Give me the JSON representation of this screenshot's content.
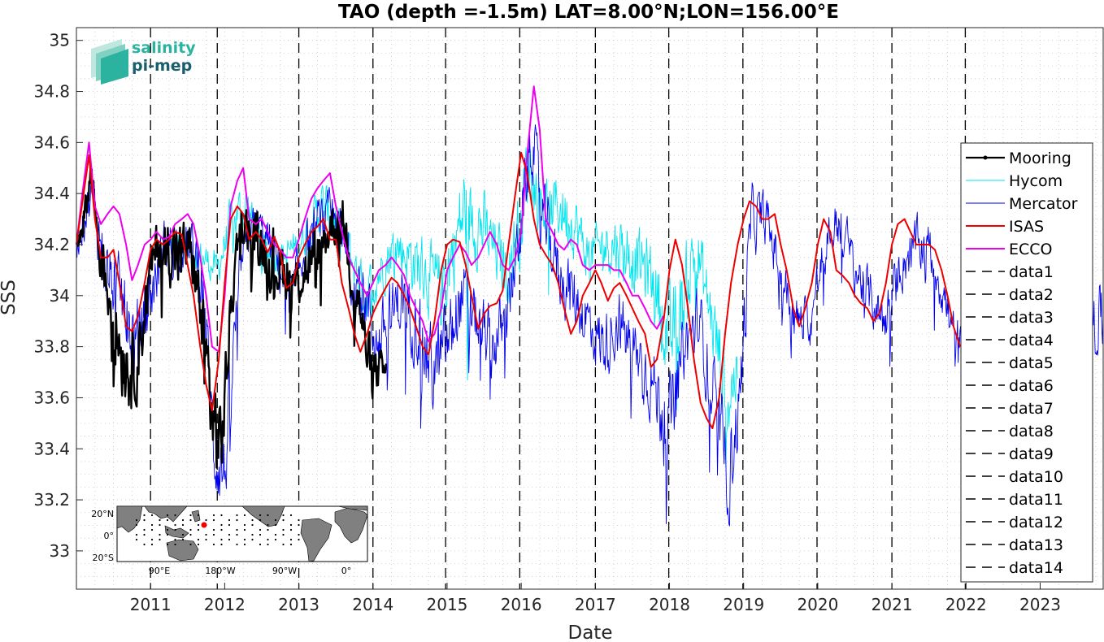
{
  "chart_data": {
    "type": "line",
    "title": "TAO (depth =-1.5m) LAT=8.00°N;LON=156.00°E",
    "xlabel": "Date",
    "ylabel": "SSS",
    "xlim": [
      2010.0,
      2023.85
    ],
    "ylim": [
      32.85,
      35.05
    ],
    "x_ticks": [
      2011,
      2012,
      2013,
      2014,
      2015,
      2016,
      2017,
      2018,
      2019,
      2020,
      2021,
      2022,
      2023
    ],
    "x_tick_labels": [
      "2011",
      "2012",
      "2013",
      "2014",
      "2015",
      "2016",
      "2017",
      "2018",
      "2019",
      "2020",
      "2021",
      "2022",
      "2023"
    ],
    "y_ticks": [
      33,
      33.2,
      33.4,
      33.6,
      33.8,
      34,
      34.2,
      34.4,
      34.6,
      34.8,
      35
    ],
    "y_tick_labels": [
      "33",
      "33.2",
      "33.4",
      "33.6",
      "33.8",
      "34",
      "34.2",
      "34.4",
      "34.6",
      "34.8",
      "35"
    ],
    "grid": true,
    "legend_position": "right",
    "vertical_markers": [
      2011.0,
      2011.9,
      2013.0,
      2014.0,
      2014.98,
      2015.98,
      2017.0,
      2017.99,
      2018.99,
      2019.99,
      2021.0,
      2021.99
    ],
    "series": [
      {
        "name": "Mooring",
        "color": "#000000",
        "style": "noisy",
        "x": [
          2010.0,
          2010.1,
          2010.2,
          2010.3,
          2010.45,
          2010.6,
          2010.75,
          2010.85,
          2011.0,
          2011.1,
          2011.25,
          2011.4,
          2011.5,
          2011.6,
          2011.75,
          2011.85,
          2011.95,
          2012.1,
          2012.2,
          2012.35,
          2012.5,
          2012.65,
          2012.8,
          2012.95,
          2013.1,
          2013.3,
          2013.5,
          2013.6,
          2013.7,
          2013.8,
          2013.9,
          2014.0,
          2014.15
        ],
        "y": [
          34.2,
          34.3,
          34.5,
          34.2,
          34.0,
          33.8,
          33.7,
          33.8,
          34.1,
          34.2,
          34.2,
          34.15,
          34.2,
          34.1,
          33.75,
          33.5,
          33.4,
          34.0,
          34.3,
          34.25,
          34.2,
          34.15,
          34.1,
          34.05,
          34.1,
          34.2,
          34.3,
          34.3,
          34.1,
          34.0,
          33.8,
          33.7,
          33.7
        ],
        "amp": [
          0.05,
          0.1,
          0.1,
          0.15,
          0.2,
          0.25,
          0.25,
          0.2,
          0.15,
          0.15,
          0.2,
          0.2,
          0.15,
          0.15,
          0.25,
          0.3,
          0.25,
          0.15,
          0.1,
          0.15,
          0.15,
          0.2,
          0.15,
          0.15,
          0.15,
          0.15,
          0.15,
          0.15,
          0.15,
          0.15,
          0.15,
          0.15,
          0.1
        ],
        "xend": 2014.18
      },
      {
        "name": "Hycom",
        "color": "#00e5ee",
        "style": "noisy",
        "x": [
          2011.15,
          2011.5,
          2011.9,
          2012.1,
          2012.3,
          2012.5,
          2012.7,
          2013.0,
          2013.3,
          2013.5,
          2013.7,
          2013.9,
          2014.1,
          2014.3,
          2014.5,
          2014.7,
          2014.9,
          2015.1,
          2015.25,
          2015.4,
          2015.6,
          2015.8,
          2016.0,
          2016.1,
          2016.2,
          2016.35,
          2016.5,
          2016.7,
          2016.9,
          2017.1,
          2017.3,
          2017.5,
          2017.7,
          2017.85,
          2018.0,
          2018.2,
          2018.35,
          2018.5,
          2018.65,
          2018.8,
          2018.9
        ],
        "y": [
          34.2,
          34.2,
          34.1,
          34.3,
          34.35,
          34.2,
          34.15,
          34.2,
          34.35,
          34.3,
          34.15,
          34.0,
          34.1,
          34.2,
          34.15,
          34.1,
          34.0,
          34.2,
          34.35,
          34.3,
          34.2,
          34.1,
          34.3,
          34.55,
          34.4,
          34.35,
          34.35,
          34.3,
          34.15,
          34.2,
          34.2,
          34.15,
          34.1,
          34.0,
          33.8,
          34.0,
          34.2,
          34.0,
          33.8,
          33.6,
          33.7
        ],
        "amp": [
          0.1,
          0.1,
          0.1,
          0.15,
          0.15,
          0.1,
          0.1,
          0.1,
          0.15,
          0.15,
          0.15,
          0.15,
          0.15,
          0.15,
          0.2,
          0.2,
          0.25,
          0.25,
          0.3,
          0.25,
          0.2,
          0.2,
          0.25,
          0.25,
          0.2,
          0.2,
          0.2,
          0.2,
          0.15,
          0.15,
          0.2,
          0.2,
          0.2,
          0.25,
          0.3,
          0.25,
          0.25,
          0.2,
          0.25,
          0.25,
          0.2
        ],
        "xend": 2018.92
      },
      {
        "name": "Mercator",
        "color": "#0000ee",
        "style": "noisy",
        "x": [
          2010.0,
          2010.2,
          2010.4,
          2010.6,
          2010.8,
          2011.0,
          2011.2,
          2011.5,
          2011.7,
          2011.85,
          2012.0,
          2012.2,
          2012.4,
          2012.6,
          2012.9,
          2013.1,
          2013.3,
          2013.5,
          2013.7,
          2013.9,
          2014.05,
          2014.2,
          2014.4,
          2014.6,
          2014.8,
          2015.0,
          2015.2,
          2015.4,
          2015.6,
          2015.8,
          2016.0,
          2016.15,
          2016.3,
          2016.5,
          2016.7,
          2016.9,
          2017.1,
          2017.3,
          2017.5,
          2017.7,
          2017.85,
          2018.0,
          2018.2,
          2018.4,
          2018.6,
          2018.8,
          2018.95,
          2019.1,
          2019.3,
          2019.5,
          2019.7,
          2019.9,
          2020.1,
          2020.3,
          2020.5,
          2020.7,
          2020.9,
          2021.1,
          2021.3,
          2021.5,
          2021.7,
          2021.85,
          2022.0,
          2022.2,
          2022.4,
          2022.6,
          2022.8,
          2023.0,
          2023.2,
          2023.4,
          2023.6,
          2023.85
        ],
        "y": [
          34.2,
          34.4,
          34.1,
          34.0,
          33.8,
          34.0,
          34.2,
          34.2,
          34.1,
          33.4,
          33.3,
          34.1,
          34.3,
          34.2,
          34.0,
          34.2,
          34.3,
          34.3,
          34.1,
          34.0,
          33.8,
          33.9,
          34.0,
          33.9,
          33.7,
          33.8,
          34.0,
          33.9,
          33.8,
          33.9,
          34.3,
          34.6,
          34.3,
          34.1,
          34.0,
          33.9,
          33.8,
          33.9,
          33.8,
          33.7,
          33.6,
          33.5,
          33.8,
          33.9,
          33.6,
          33.3,
          33.6,
          34.3,
          34.3,
          34.1,
          33.9,
          33.9,
          34.2,
          34.3,
          34.1,
          34.0,
          33.9,
          34.1,
          34.2,
          34.2,
          34.0,
          33.8,
          33.7,
          33.9,
          34.0,
          34.1,
          34.2,
          34.1,
          34.3,
          34.0,
          33.9,
          33.9
        ],
        "amp": [
          0.1,
          0.15,
          0.2,
          0.2,
          0.25,
          0.2,
          0.15,
          0.15,
          0.2,
          0.25,
          0.25,
          0.15,
          0.1,
          0.15,
          0.15,
          0.15,
          0.15,
          0.15,
          0.2,
          0.2,
          0.2,
          0.2,
          0.2,
          0.25,
          0.25,
          0.25,
          0.2,
          0.2,
          0.2,
          0.2,
          0.2,
          0.2,
          0.2,
          0.2,
          0.2,
          0.2,
          0.2,
          0.2,
          0.2,
          0.2,
          0.25,
          0.25,
          0.2,
          0.2,
          0.25,
          0.25,
          0.25,
          0.2,
          0.15,
          0.15,
          0.15,
          0.15,
          0.15,
          0.15,
          0.15,
          0.15,
          0.15,
          0.15,
          0.15,
          0.15,
          0.15,
          0.2,
          0.2,
          0.2,
          0.2,
          0.2,
          0.25,
          0.25,
          0.3,
          0.2,
          0.2,
          0.2
        ],
        "xend": 2023.85
      },
      {
        "name": "ISAS",
        "color": "#ee0000",
        "style": "smooth",
        "x": [
          2010.0,
          2010.17,
          2010.25,
          2010.33,
          2010.42,
          2010.5,
          2010.58,
          2010.67,
          2010.75,
          2010.83,
          2010.92,
          2011.0,
          2011.08,
          2011.17,
          2011.25,
          2011.33,
          2011.42,
          2011.5,
          2011.58,
          2011.67,
          2011.75,
          2011.83,
          2011.92,
          2012.0,
          2012.08,
          2012.17,
          2012.25,
          2012.33,
          2012.42,
          2012.5,
          2012.58,
          2012.67,
          2012.75,
          2012.83,
          2012.92,
          2013.0,
          2013.08,
          2013.17,
          2013.25,
          2013.33,
          2013.42,
          2013.5,
          2013.58,
          2013.67,
          2013.75,
          2013.83,
          2013.92,
          2014.0,
          2014.08,
          2014.17,
          2014.25,
          2014.33,
          2014.42,
          2014.5,
          2014.58,
          2014.67,
          2014.75,
          2014.83,
          2014.92,
          2015.0,
          2015.08,
          2015.17,
          2015.25,
          2015.33,
          2015.42,
          2015.5,
          2015.58,
          2015.67,
          2015.75,
          2015.83,
          2015.92,
          2016.0,
          2016.08,
          2016.17,
          2016.25,
          2016.33,
          2016.42,
          2016.5,
          2016.58,
          2016.67,
          2016.75,
          2016.83,
          2016.92,
          2017.0,
          2017.08,
          2017.17,
          2017.25,
          2017.33,
          2017.42,
          2017.5,
          2017.58,
          2017.67,
          2017.75,
          2017.83,
          2017.92,
          2018.0,
          2018.08,
          2018.17,
          2018.25,
          2018.33,
          2018.42,
          2018.5,
          2018.58,
          2018.67,
          2018.75,
          2018.83,
          2018.92,
          2019.0,
          2019.08,
          2019.17,
          2019.25,
          2019.33,
          2019.42,
          2019.5,
          2019.58,
          2019.67,
          2019.75,
          2019.83,
          2019.92,
          2020.0,
          2020.08,
          2020.17,
          2020.25,
          2020.33,
          2020.42,
          2020.5,
          2020.58,
          2020.67,
          2020.75,
          2020.83,
          2020.92,
          2021.0,
          2021.08,
          2021.17,
          2021.25,
          2021.33,
          2021.42,
          2021.5,
          2021.58,
          2021.67,
          2021.75,
          2021.83,
          2021.92
        ],
        "y": [
          34.2,
          34.55,
          34.3,
          34.15,
          34.15,
          34.18,
          34.05,
          33.88,
          33.86,
          33.92,
          34.05,
          34.18,
          34.22,
          34.2,
          34.22,
          34.25,
          34.24,
          34.12,
          34.0,
          33.8,
          33.65,
          33.55,
          33.75,
          34.05,
          34.3,
          34.35,
          34.32,
          34.22,
          34.25,
          34.22,
          34.17,
          34.23,
          34.17,
          34.03,
          34.05,
          34.15,
          34.2,
          34.25,
          34.27,
          34.3,
          34.22,
          34.22,
          34.05,
          33.95,
          33.85,
          33.78,
          33.85,
          33.93,
          33.98,
          34.03,
          34.07,
          34.05,
          34.0,
          33.95,
          33.88,
          33.8,
          33.77,
          33.9,
          34.1,
          34.2,
          34.22,
          34.21,
          34.12,
          34.0,
          33.87,
          33.93,
          33.96,
          33.97,
          34.02,
          34.2,
          34.4,
          34.56,
          34.48,
          34.3,
          34.2,
          34.16,
          34.12,
          34.05,
          33.95,
          33.85,
          33.9,
          34.0,
          34.05,
          34.1,
          34.05,
          33.98,
          34.03,
          34.05,
          34.0,
          33.95,
          33.9,
          33.85,
          33.72,
          33.75,
          33.9,
          34.1,
          34.22,
          34.12,
          33.95,
          33.75,
          33.58,
          33.52,
          33.48,
          33.6,
          33.85,
          34.05,
          34.2,
          34.3,
          34.37,
          34.35,
          34.3,
          34.3,
          34.32,
          34.2,
          34.1,
          33.95,
          33.88,
          33.95,
          34.05,
          34.2,
          34.3,
          34.25,
          34.1,
          34.08,
          34.05,
          34.0,
          33.97,
          33.95,
          33.9,
          33.93,
          34.05,
          34.2,
          34.28,
          34.3,
          34.25,
          34.2,
          34.2,
          34.2,
          34.18,
          34.1,
          34.0,
          33.88,
          33.8
        ]
      },
      {
        "name": "ECCO",
        "color": "#ee00ee",
        "style": "smooth",
        "x": [
          2010.0,
          2010.08,
          2010.17,
          2010.25,
          2010.33,
          2010.42,
          2010.5,
          2010.58,
          2010.67,
          2010.75,
          2010.83,
          2010.92,
          2011.0,
          2011.08,
          2011.17,
          2011.25,
          2011.33,
          2011.42,
          2011.5,
          2011.58,
          2011.67,
          2011.75,
          2011.83,
          2011.92,
          2012.0,
          2012.08,
          2012.17,
          2012.25,
          2012.33,
          2012.42,
          2012.5,
          2012.58,
          2012.67,
          2012.75,
          2012.83,
          2012.92,
          2013.0,
          2013.08,
          2013.17,
          2013.25,
          2013.33,
          2013.42,
          2013.5,
          2013.58,
          2013.67,
          2013.75,
          2013.83,
          2013.92,
          2014.0,
          2014.08,
          2014.17,
          2014.25,
          2014.33,
          2014.42,
          2014.5,
          2014.58,
          2014.67,
          2014.75,
          2014.83,
          2014.92,
          2015.0,
          2015.08,
          2015.17,
          2015.25,
          2015.33,
          2015.42,
          2015.5,
          2015.58,
          2015.67,
          2015.75,
          2015.83,
          2015.92,
          2016.0,
          2016.08,
          2016.17,
          2016.25,
          2016.33,
          2016.42,
          2016.5,
          2016.58,
          2016.67,
          2016.75,
          2016.83,
          2016.92,
          2017.0,
          2017.08,
          2017.17,
          2017.25,
          2017.33,
          2017.42,
          2017.5,
          2017.58,
          2017.67,
          2017.75,
          2017.83,
          2017.92
        ],
        "y": [
          34.2,
          34.4,
          34.6,
          34.35,
          34.28,
          34.32,
          34.35,
          34.32,
          34.2,
          34.06,
          34.12,
          34.2,
          34.22,
          34.25,
          34.22,
          34.23,
          34.28,
          34.3,
          34.32,
          34.28,
          34.15,
          34.0,
          33.8,
          33.78,
          34.0,
          34.35,
          34.45,
          34.5,
          34.3,
          34.28,
          34.3,
          34.25,
          34.2,
          34.18,
          34.15,
          34.15,
          34.22,
          34.3,
          34.38,
          34.42,
          34.45,
          34.48,
          34.35,
          34.25,
          34.15,
          34.1,
          34.05,
          34.0,
          34.05,
          34.1,
          34.12,
          34.15,
          34.12,
          34.08,
          34.0,
          33.95,
          33.9,
          33.82,
          33.85,
          33.95,
          34.1,
          34.15,
          34.2,
          34.17,
          34.12,
          34.15,
          34.2,
          34.25,
          34.2,
          34.12,
          34.1,
          34.15,
          34.25,
          34.55,
          34.82,
          34.65,
          34.3,
          34.25,
          34.2,
          34.18,
          34.22,
          34.2,
          34.12,
          34.1,
          34.12,
          34.12,
          34.12,
          34.1,
          34.1,
          34.05,
          34.0,
          34.0,
          33.95,
          33.9,
          33.87,
          33.92
        ]
      },
      {
        "name": "data1",
        "color": "#000000",
        "style": "dashed"
      },
      {
        "name": "data2",
        "color": "#000000",
        "style": "dashed"
      },
      {
        "name": "data3",
        "color": "#000000",
        "style": "dashed"
      },
      {
        "name": "data4",
        "color": "#000000",
        "style": "dashed"
      },
      {
        "name": "data5",
        "color": "#000000",
        "style": "dashed"
      },
      {
        "name": "data6",
        "color": "#000000",
        "style": "dashed"
      },
      {
        "name": "data7",
        "color": "#000000",
        "style": "dashed"
      },
      {
        "name": "data8",
        "color": "#000000",
        "style": "dashed"
      },
      {
        "name": "data9",
        "color": "#000000",
        "style": "dashed"
      },
      {
        "name": "data10",
        "color": "#000000",
        "style": "dashed"
      },
      {
        "name": "data11",
        "color": "#000000",
        "style": "dashed"
      },
      {
        "name": "data12",
        "color": "#000000",
        "style": "dashed"
      },
      {
        "name": "data13",
        "color": "#000000",
        "style": "dashed"
      },
      {
        "name": "data14",
        "color": "#000000",
        "style": "dashed"
      }
    ]
  },
  "logo": {
    "line1": "salinity",
    "line2": "pi-mep",
    "color1": "#2bb3a0",
    "color2": "#1a5e6b"
  },
  "inset_map": {
    "lat_labels": [
      "20°N",
      "0°",
      "20°S"
    ],
    "lon_labels": [
      "90°E",
      "180°W",
      "90°W",
      "0°"
    ],
    "ocean_color": "#ffffff",
    "land_color": "#808080",
    "marker_color": "#ee0000"
  }
}
